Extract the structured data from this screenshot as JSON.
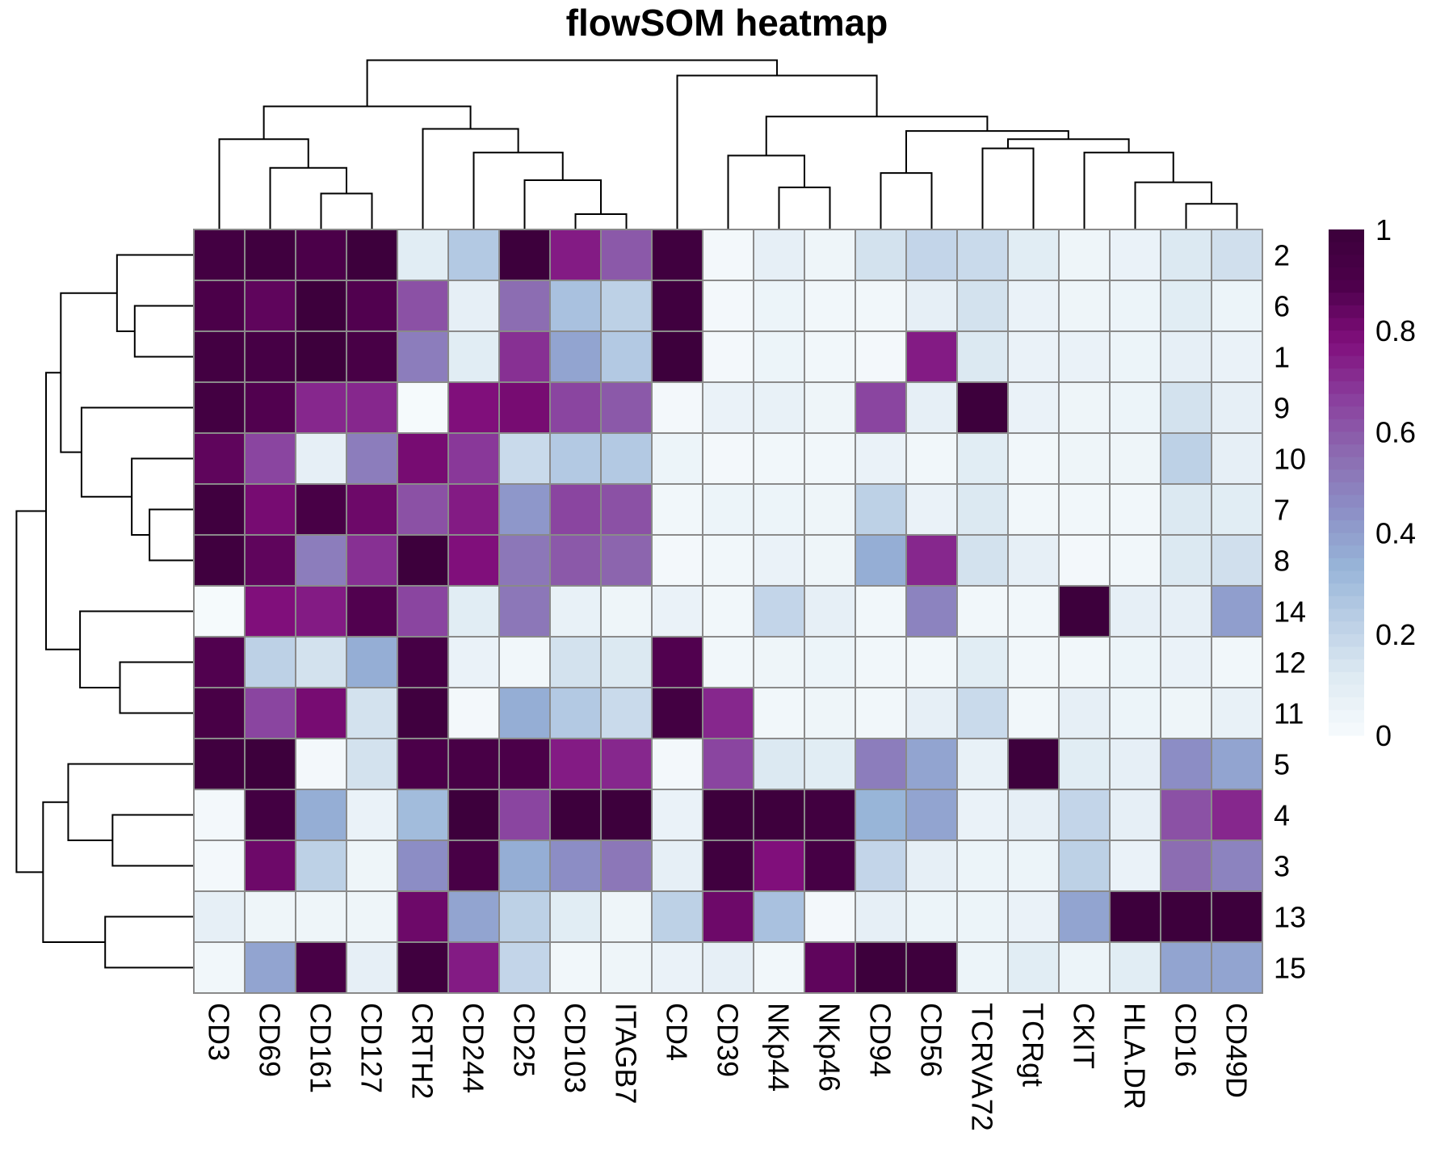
{
  "chart_data": {
    "type": "heatmap",
    "title": "flowSOM heatmap",
    "columns": [
      "CD3",
      "CD69",
      "CD161",
      "CD127",
      "CRTH2",
      "CD244",
      "CD25",
      "CD103",
      "ITAGB7",
      "CD4",
      "CD39",
      "NKp44",
      "NKp46",
      "CD94",
      "CD56",
      "TCRVA72",
      "TCRgt",
      "CKIT",
      "HLA.DR",
      "CD16",
      "CD49D"
    ],
    "rows": [
      "2",
      "6",
      "1",
      "9",
      "10",
      "7",
      "8",
      "14",
      "12",
      "11",
      "5",
      "4",
      "3",
      "13",
      "15"
    ],
    "values": [
      [
        0.95,
        0.97,
        0.9,
        0.99,
        0.1,
        0.25,
        0.99,
        0.75,
        0.6,
        0.97,
        0.02,
        0.08,
        0.04,
        0.15,
        0.2,
        0.18,
        0.1,
        0.04,
        0.06,
        0.12,
        0.16
      ],
      [
        0.9,
        0.85,
        0.99,
        0.88,
        0.62,
        0.08,
        0.55,
        0.28,
        0.22,
        0.97,
        0.02,
        0.05,
        0.03,
        0.03,
        0.08,
        0.15,
        0.06,
        0.04,
        0.05,
        0.1,
        0.05
      ],
      [
        0.95,
        0.93,
        0.99,
        0.92,
        0.5,
        0.1,
        0.7,
        0.38,
        0.25,
        0.99,
        0.02,
        0.05,
        0.03,
        0.02,
        0.75,
        0.12,
        0.06,
        0.06,
        0.05,
        0.08,
        0.06
      ],
      [
        0.95,
        0.88,
        0.72,
        0.72,
        0.01,
        0.78,
        0.8,
        0.65,
        0.6,
        0.02,
        0.06,
        0.07,
        0.04,
        0.65,
        0.08,
        0.99,
        0.06,
        0.04,
        0.05,
        0.15,
        0.08
      ],
      [
        0.85,
        0.65,
        0.08,
        0.5,
        0.8,
        0.68,
        0.18,
        0.25,
        0.25,
        0.05,
        0.02,
        0.03,
        0.03,
        0.06,
        0.03,
        0.1,
        0.03,
        0.04,
        0.04,
        0.22,
        0.08
      ],
      [
        0.97,
        0.8,
        0.92,
        0.82,
        0.62,
        0.75,
        0.42,
        0.65,
        0.62,
        0.03,
        0.05,
        0.05,
        0.04,
        0.22,
        0.06,
        0.12,
        0.03,
        0.03,
        0.03,
        0.12,
        0.1
      ],
      [
        0.97,
        0.85,
        0.5,
        0.7,
        0.99,
        0.78,
        0.52,
        0.6,
        0.57,
        0.02,
        0.03,
        0.06,
        0.04,
        0.35,
        0.72,
        0.15,
        0.08,
        0.02,
        0.03,
        0.12,
        0.16
      ],
      [
        0.01,
        0.78,
        0.75,
        0.88,
        0.65,
        0.1,
        0.52,
        0.07,
        0.04,
        0.06,
        0.03,
        0.2,
        0.08,
        0.03,
        0.48,
        0.03,
        0.03,
        0.99,
        0.08,
        0.08,
        0.4
      ],
      [
        0.88,
        0.22,
        0.15,
        0.35,
        0.93,
        0.06,
        0.03,
        0.15,
        0.12,
        0.88,
        0.03,
        0.04,
        0.05,
        0.03,
        0.03,
        0.1,
        0.03,
        0.03,
        0.05,
        0.06,
        0.03
      ],
      [
        0.92,
        0.65,
        0.8,
        0.15,
        0.97,
        0.02,
        0.35,
        0.25,
        0.18,
        0.95,
        0.72,
        0.03,
        0.04,
        0.03,
        0.08,
        0.18,
        0.03,
        0.08,
        0.05,
        0.04,
        0.07
      ],
      [
        0.97,
        0.99,
        0.02,
        0.15,
        0.9,
        0.92,
        0.9,
        0.75,
        0.72,
        0.02,
        0.65,
        0.12,
        0.1,
        0.5,
        0.38,
        0.07,
        0.99,
        0.1,
        0.08,
        0.45,
        0.38
      ],
      [
        0.02,
        0.95,
        0.35,
        0.06,
        0.3,
        0.99,
        0.65,
        0.99,
        0.99,
        0.06,
        0.99,
        0.98,
        0.96,
        0.33,
        0.38,
        0.06,
        0.08,
        0.2,
        0.08,
        0.62,
        0.72
      ],
      [
        0.02,
        0.82,
        0.22,
        0.04,
        0.45,
        0.92,
        0.35,
        0.45,
        0.52,
        0.08,
        0.97,
        0.78,
        0.93,
        0.2,
        0.08,
        0.05,
        0.05,
        0.22,
        0.06,
        0.55,
        0.48
      ],
      [
        0.08,
        0.04,
        0.04,
        0.04,
        0.82,
        0.38,
        0.22,
        0.1,
        0.04,
        0.22,
        0.82,
        0.28,
        0.02,
        0.08,
        0.05,
        0.05,
        0.06,
        0.38,
        0.99,
        0.99,
        0.99
      ],
      [
        0.03,
        0.38,
        0.92,
        0.08,
        0.97,
        0.75,
        0.2,
        0.03,
        0.04,
        0.06,
        0.08,
        0.03,
        0.85,
        0.99,
        0.98,
        0.05,
        0.1,
        0.05,
        0.1,
        0.38,
        0.38
      ]
    ],
    "color_scale": {
      "min": 0,
      "max": 1,
      "ticks": [
        "0",
        "0.2",
        "0.4",
        "0.6",
        "0.8",
        "1"
      ],
      "stops": [
        "#f7fbfd",
        "#dfebf3",
        "#bcd0e6",
        "#97b4d8",
        "#8c8fc6",
        "#8c6bb1",
        "#8a3e9d",
        "#810f7c",
        "#4d004b",
        "#3b003a"
      ]
    },
    "cell_border_color": "#8a8a8a",
    "row_dendrogram": "left",
    "column_dendrogram": "top",
    "legend_placement": "right"
  }
}
